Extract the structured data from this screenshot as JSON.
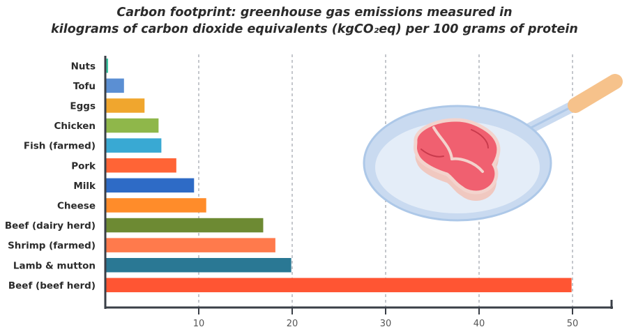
{
  "chart_data": {
    "type": "bar",
    "orientation": "horizontal",
    "title_lines": [
      "Carbon footprint: greenhouse gas emissions measured in",
      "kilograms of carbon dioxide equivalents (kgCO₂eq) per 100 grams of protein"
    ],
    "xlabel": "",
    "ylabel": "",
    "xlim": [
      0,
      54
    ],
    "xticks": [
      10,
      20,
      30,
      40,
      50
    ],
    "grid": "vertical dashed",
    "categories": [
      "Nuts",
      "Tofu",
      "Eggs",
      "Chicken",
      "Fish (farmed)",
      "Pork",
      "Milk",
      "Cheese",
      "Beef (dairy herd)",
      "Shrimp (farmed)",
      "Lamb & mutton",
      "Beef (beef herd)"
    ],
    "values": [
      0.3,
      2.0,
      4.2,
      5.7,
      6.0,
      7.6,
      9.5,
      10.8,
      16.9,
      18.2,
      19.9,
      49.9
    ],
    "colors": [
      "#3dc6a2",
      "#5b8fd3",
      "#f0a62e",
      "#8fb74a",
      "#39a9d3",
      "#ff6436",
      "#2e6bc6",
      "#ff8c2a",
      "#6d8a33",
      "#ff7a4c",
      "#2a7894",
      "#ff5533"
    ]
  },
  "illustration": {
    "icon": "steak-in-frying-pan-icon"
  }
}
